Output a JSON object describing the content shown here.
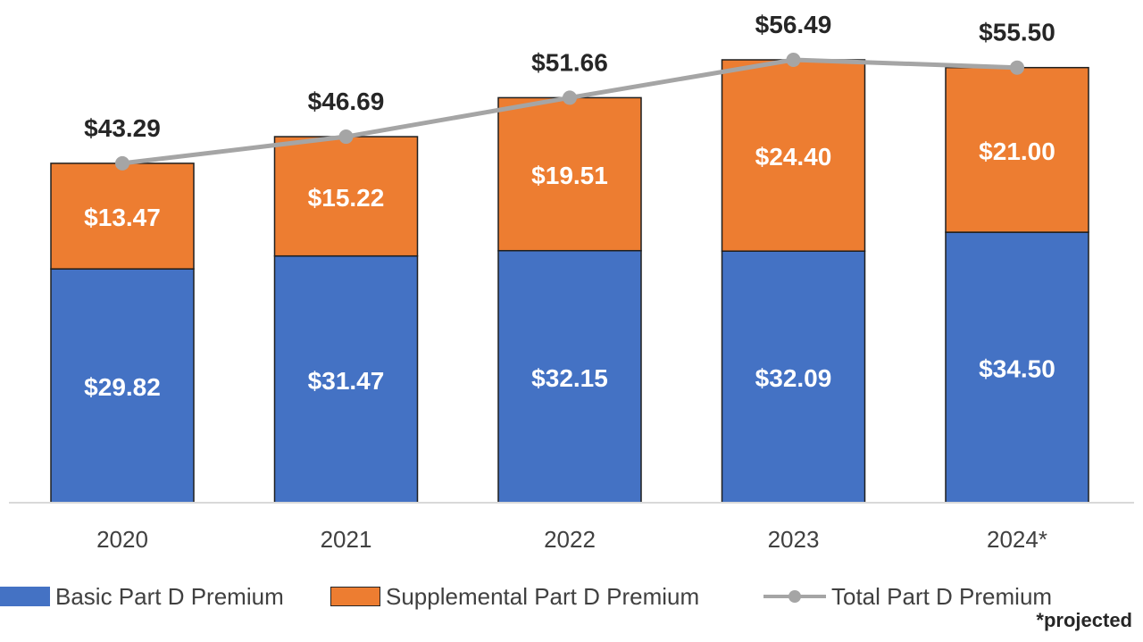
{
  "chart_data": {
    "type": "bar",
    "stacked": true,
    "categories": [
      "2020",
      "2021",
      "2022",
      "2023",
      "2024*"
    ],
    "series": [
      {
        "name": "Basic Part D Premium",
        "color": "#4472c4",
        "values": [
          29.82,
          31.47,
          32.15,
          32.09,
          34.5
        ],
        "labels": [
          "$29.82",
          "$31.47",
          "$32.15",
          "$32.09",
          "$34.50"
        ]
      },
      {
        "name": "Supplemental Part D Premium",
        "color": "#ed7d31",
        "values": [
          13.47,
          15.22,
          19.51,
          24.4,
          21.0
        ],
        "labels": [
          "$13.47",
          "$15.22",
          "$19.51",
          "$24.40",
          "$21.00"
        ]
      },
      {
        "name": "Total Part D Premium",
        "type": "line",
        "color": "#a5a5a5",
        "values": [
          43.29,
          46.69,
          51.66,
          56.49,
          55.5
        ],
        "labels": [
          "$43.29",
          "$46.69",
          "$51.66",
          "$56.49",
          "$55.50"
        ]
      }
    ],
    "ylim": [
      0,
      60
    ],
    "grid": false,
    "legend_position": "bottom",
    "footnote": "*projected"
  }
}
